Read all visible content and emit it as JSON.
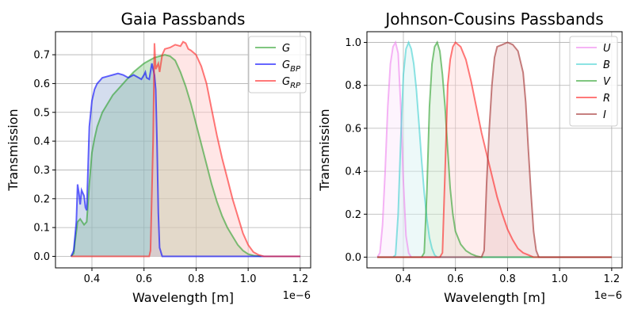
{
  "chart_data": [
    {
      "type": "area",
      "title": "Gaia Passbands",
      "xlabel": "Wavelength [m]",
      "ylabel": "Transmission",
      "x_offset_label": "1e−6",
      "xlim": [
        0.26,
        1.24
      ],
      "ylim": [
        -0.04,
        0.78
      ],
      "xticks": [
        0.4,
        0.6,
        0.8,
        1.0,
        1.2
      ],
      "xtick_labels": [
        "0.4",
        "0.6",
        "0.8",
        "1.0",
        "1.2"
      ],
      "yticks": [
        0.0,
        0.1,
        0.2,
        0.3,
        0.4,
        0.5,
        0.6,
        0.7
      ],
      "ytick_labels": [
        "0.0",
        "0.1",
        "0.2",
        "0.3",
        "0.4",
        "0.5",
        "0.6",
        "0.7"
      ],
      "grid": true,
      "legend_position": "top-right",
      "series": [
        {
          "name": "G",
          "legend_base": "G",
          "legend_sub": "",
          "color": "#2ca02c",
          "fill": "#8fc98f",
          "points": [
            [
              0.32,
              0
            ],
            [
              0.33,
              0.01
            ],
            [
              0.335,
              0.05
            ],
            [
              0.345,
              0.12
            ],
            [
              0.355,
              0.13
            ],
            [
              0.37,
              0.11
            ],
            [
              0.38,
              0.12
            ],
            [
              0.39,
              0.25
            ],
            [
              0.4,
              0.36
            ],
            [
              0.41,
              0.41
            ],
            [
              0.42,
              0.45
            ],
            [
              0.44,
              0.5
            ],
            [
              0.46,
              0.53
            ],
            [
              0.48,
              0.56
            ],
            [
              0.5,
              0.58
            ],
            [
              0.52,
              0.6
            ],
            [
              0.54,
              0.62
            ],
            [
              0.56,
              0.64
            ],
            [
              0.58,
              0.655
            ],
            [
              0.6,
              0.67
            ],
            [
              0.62,
              0.68
            ],
            [
              0.64,
              0.69
            ],
            [
              0.66,
              0.695
            ],
            [
              0.68,
              0.7
            ],
            [
              0.7,
              0.695
            ],
            [
              0.72,
              0.68
            ],
            [
              0.74,
              0.64
            ],
            [
              0.76,
              0.59
            ],
            [
              0.78,
              0.53
            ],
            [
              0.8,
              0.46
            ],
            [
              0.82,
              0.39
            ],
            [
              0.84,
              0.32
            ],
            [
              0.86,
              0.25
            ],
            [
              0.88,
              0.19
            ],
            [
              0.9,
              0.14
            ],
            [
              0.92,
              0.1
            ],
            [
              0.94,
              0.07
            ],
            [
              0.96,
              0.04
            ],
            [
              0.98,
              0.02
            ],
            [
              1.0,
              0.008
            ],
            [
              1.02,
              0.003
            ],
            [
              1.05,
              0.0
            ]
          ]
        },
        {
          "name": "G_BP",
          "legend_base": "G",
          "legend_sub": "BP",
          "color": "#0000ff",
          "fill": "#9fb3d9",
          "points": [
            [
              0.32,
              0
            ],
            [
              0.33,
              0.02
            ],
            [
              0.34,
              0.12
            ],
            [
              0.345,
              0.25
            ],
            [
              0.35,
              0.22
            ],
            [
              0.355,
              0.18
            ],
            [
              0.36,
              0.23
            ],
            [
              0.37,
              0.21
            ],
            [
              0.375,
              0.17
            ],
            [
              0.38,
              0.16
            ],
            [
              0.39,
              0.45
            ],
            [
              0.4,
              0.54
            ],
            [
              0.41,
              0.58
            ],
            [
              0.42,
              0.6
            ],
            [
              0.43,
              0.61
            ],
            [
              0.44,
              0.62
            ],
            [
              0.46,
              0.625
            ],
            [
              0.48,
              0.63
            ],
            [
              0.5,
              0.635
            ],
            [
              0.52,
              0.63
            ],
            [
              0.54,
              0.62
            ],
            [
              0.56,
              0.63
            ],
            [
              0.58,
              0.62
            ],
            [
              0.59,
              0.615
            ],
            [
              0.6,
              0.63
            ],
            [
              0.605,
              0.64
            ],
            [
              0.61,
              0.62
            ],
            [
              0.62,
              0.615
            ],
            [
              0.63,
              0.67
            ],
            [
              0.64,
              0.63
            ],
            [
              0.645,
              0.58
            ],
            [
              0.65,
              0.4
            ],
            [
              0.655,
              0.15
            ],
            [
              0.66,
              0.03
            ],
            [
              0.67,
              0.0
            ],
            [
              0.7,
              0.0
            ],
            [
              1.2,
              0.0
            ]
          ]
        },
        {
          "name": "G_RP",
          "legend_base": "G",
          "legend_sub": "RP",
          "color": "#ff2020",
          "fill": "#ffc8c8",
          "points": [
            [
              0.32,
              0
            ],
            [
              0.6,
              0
            ],
            [
              0.62,
              0.0
            ],
            [
              0.625,
              0.02
            ],
            [
              0.635,
              0.4
            ],
            [
              0.64,
              0.74
            ],
            [
              0.645,
              0.65
            ],
            [
              0.655,
              0.67
            ],
            [
              0.66,
              0.64
            ],
            [
              0.67,
              0.7
            ],
            [
              0.68,
              0.72
            ],
            [
              0.7,
              0.725
            ],
            [
              0.72,
              0.735
            ],
            [
              0.74,
              0.73
            ],
            [
              0.75,
              0.745
            ],
            [
              0.76,
              0.74
            ],
            [
              0.77,
              0.72
            ],
            [
              0.78,
              0.715
            ],
            [
              0.8,
              0.7
            ],
            [
              0.82,
              0.66
            ],
            [
              0.84,
              0.6
            ],
            [
              0.86,
              0.51
            ],
            [
              0.88,
              0.42
            ],
            [
              0.9,
              0.34
            ],
            [
              0.92,
              0.27
            ],
            [
              0.94,
              0.2
            ],
            [
              0.96,
              0.14
            ],
            [
              0.98,
              0.08
            ],
            [
              1.0,
              0.04
            ],
            [
              1.02,
              0.015
            ],
            [
              1.04,
              0.005
            ],
            [
              1.06,
              0.0
            ],
            [
              1.2,
              0.0
            ]
          ]
        }
      ]
    },
    {
      "type": "area",
      "title": "Johnson-Cousins Passbands",
      "xlabel": "Wavelength [m]",
      "ylabel": "Transmission",
      "x_offset_label": "1e−6",
      "xlim": [
        0.26,
        1.24
      ],
      "ylim": [
        -0.05,
        1.05
      ],
      "xticks": [
        0.4,
        0.6,
        0.8,
        1.0,
        1.2
      ],
      "xtick_labels": [
        "0.4",
        "0.6",
        "0.8",
        "1.0",
        "1.2"
      ],
      "yticks": [
        0.0,
        0.2,
        0.4,
        0.6,
        0.8,
        1.0
      ],
      "ytick_labels": [
        "0.0",
        "0.2",
        "0.4",
        "0.6",
        "0.8",
        "1.0"
      ],
      "grid": true,
      "legend_position": "top-right",
      "series": [
        {
          "name": "U",
          "legend_base": "U",
          "legend_sub": "",
          "color": "#ee82ee",
          "fill": "#fbe6fb",
          "points": [
            [
              0.3,
              0
            ],
            [
              0.31,
              0.02
            ],
            [
              0.32,
              0.15
            ],
            [
              0.33,
              0.4
            ],
            [
              0.34,
              0.7
            ],
            [
              0.35,
              0.9
            ],
            [
              0.36,
              0.98
            ],
            [
              0.37,
              1.0
            ],
            [
              0.38,
              0.95
            ],
            [
              0.39,
              0.7
            ],
            [
              0.4,
              0.35
            ],
            [
              0.41,
              0.1
            ],
            [
              0.42,
              0.02
            ],
            [
              0.43,
              0.0
            ],
            [
              1.2,
              0.0
            ]
          ]
        },
        {
          "name": "B",
          "legend_base": "B",
          "legend_sub": "",
          "color": "#40d0d0",
          "fill": "#d6f2f2",
          "points": [
            [
              0.3,
              0
            ],
            [
              0.36,
              0
            ],
            [
              0.37,
              0.01
            ],
            [
              0.38,
              0.2
            ],
            [
              0.39,
              0.55
            ],
            [
              0.4,
              0.85
            ],
            [
              0.41,
              0.97
            ],
            [
              0.42,
              1.0
            ],
            [
              0.43,
              0.97
            ],
            [
              0.44,
              0.9
            ],
            [
              0.45,
              0.78
            ],
            [
              0.46,
              0.62
            ],
            [
              0.47,
              0.45
            ],
            [
              0.48,
              0.3
            ],
            [
              0.49,
              0.18
            ],
            [
              0.5,
              0.09
            ],
            [
              0.51,
              0.04
            ],
            [
              0.52,
              0.01
            ],
            [
              0.53,
              0.0
            ],
            [
              1.2,
              0.0
            ]
          ]
        },
        {
          "name": "V",
          "legend_base": "V",
          "legend_sub": "",
          "color": "#2ca02c",
          "fill": "#cfe8cf",
          "points": [
            [
              0.3,
              0
            ],
            [
              0.47,
              0
            ],
            [
              0.48,
              0.02
            ],
            [
              0.49,
              0.3
            ],
            [
              0.5,
              0.7
            ],
            [
              0.51,
              0.9
            ],
            [
              0.52,
              0.98
            ],
            [
              0.53,
              1.0
            ],
            [
              0.54,
              0.96
            ],
            [
              0.55,
              0.85
            ],
            [
              0.56,
              0.7
            ],
            [
              0.57,
              0.5
            ],
            [
              0.58,
              0.32
            ],
            [
              0.59,
              0.2
            ],
            [
              0.6,
              0.12
            ],
            [
              0.62,
              0.06
            ],
            [
              0.64,
              0.03
            ],
            [
              0.66,
              0.015
            ],
            [
              0.68,
              0.005
            ],
            [
              0.7,
              0.0
            ],
            [
              1.2,
              0.0
            ]
          ]
        },
        {
          "name": "R",
          "legend_base": "R",
          "legend_sub": "",
          "color": "#ff2020",
          "fill": "#ffd6d6",
          "points": [
            [
              0.3,
              0
            ],
            [
              0.54,
              0
            ],
            [
              0.55,
              0.02
            ],
            [
              0.56,
              0.4
            ],
            [
              0.57,
              0.8
            ],
            [
              0.58,
              0.92
            ],
            [
              0.59,
              0.98
            ],
            [
              0.6,
              1.0
            ],
            [
              0.62,
              0.98
            ],
            [
              0.64,
              0.92
            ],
            [
              0.66,
              0.82
            ],
            [
              0.68,
              0.7
            ],
            [
              0.7,
              0.58
            ],
            [
              0.72,
              0.48
            ],
            [
              0.74,
              0.38
            ],
            [
              0.76,
              0.28
            ],
            [
              0.78,
              0.2
            ],
            [
              0.8,
              0.13
            ],
            [
              0.82,
              0.08
            ],
            [
              0.84,
              0.04
            ],
            [
              0.86,
              0.02
            ],
            [
              0.88,
              0.01
            ],
            [
              0.9,
              0.0
            ],
            [
              1.2,
              0.0
            ]
          ]
        },
        {
          "name": "I",
          "legend_base": "I",
          "legend_sub": "",
          "color": "#a02c2c",
          "fill": "#e8c8c8",
          "points": [
            [
              0.3,
              0
            ],
            [
              0.7,
              0
            ],
            [
              0.71,
              0.03
            ],
            [
              0.72,
              0.35
            ],
            [
              0.73,
              0.6
            ],
            [
              0.74,
              0.8
            ],
            [
              0.75,
              0.93
            ],
            [
              0.76,
              0.98
            ],
            [
              0.78,
              0.99
            ],
            [
              0.8,
              1.0
            ],
            [
              0.82,
              0.99
            ],
            [
              0.84,
              0.96
            ],
            [
              0.86,
              0.86
            ],
            [
              0.87,
              0.72
            ],
            [
              0.88,
              0.5
            ],
            [
              0.89,
              0.3
            ],
            [
              0.9,
              0.12
            ],
            [
              0.91,
              0.03
            ],
            [
              0.92,
              0.0
            ],
            [
              1.2,
              0.0
            ]
          ]
        }
      ]
    }
  ]
}
